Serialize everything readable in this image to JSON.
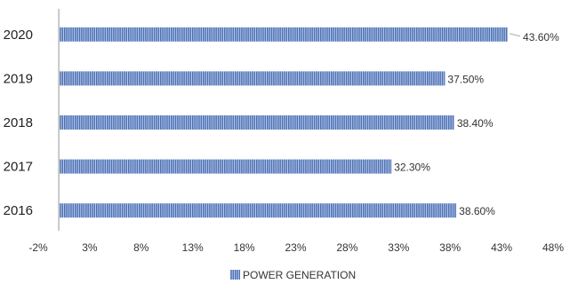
{
  "chart_data": {
    "type": "bar",
    "orientation": "horizontal",
    "categories": [
      "2020",
      "2019",
      "2018",
      "2017",
      "2016"
    ],
    "series": [
      {
        "name": "POWER GENERATION",
        "values": [
          43.6,
          37.5,
          38.4,
          32.3,
          38.6
        ],
        "color": "#4a6fb5"
      }
    ],
    "data_labels": [
      "43.60%",
      "37.50%",
      "38.40%",
      "32.30%",
      "38.60%"
    ],
    "x_ticks": [
      -2,
      3,
      8,
      13,
      18,
      23,
      28,
      33,
      38,
      43,
      48
    ],
    "x_tick_labels": [
      "-2%",
      "3%",
      "8%",
      "13%",
      "18%",
      "23%",
      "28%",
      "33%",
      "38%",
      "43%",
      "48%"
    ],
    "xlim": [
      -2,
      48
    ],
    "title": "",
    "xlabel": "",
    "ylabel": "",
    "grid": false,
    "legend_position": "bottom"
  }
}
